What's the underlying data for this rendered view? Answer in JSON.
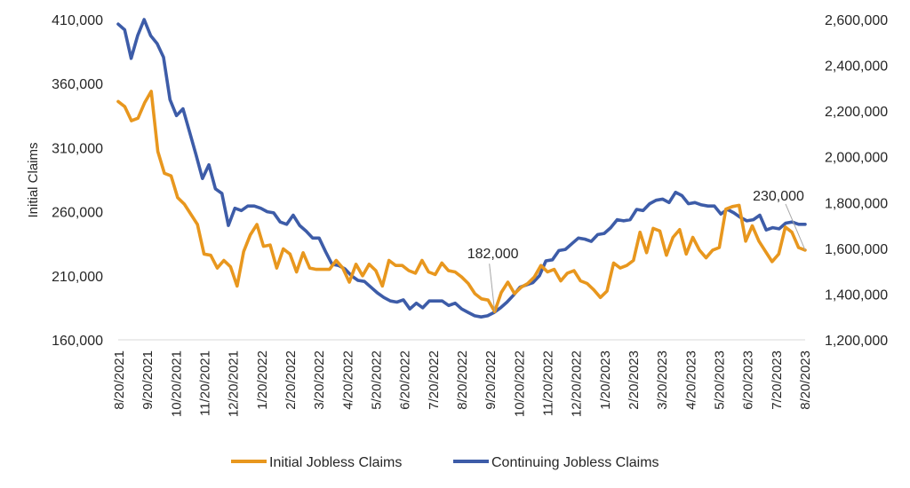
{
  "chart_data": {
    "type": "line",
    "title": "",
    "ylabel": "Initial Claims",
    "y2label": "",
    "xlabel": "",
    "ylim": [
      160000,
      410000
    ],
    "y2lim": [
      1200000,
      2600000
    ],
    "yticks": [
      "410,000",
      "360,000",
      "310,000",
      "260,000",
      "210,000",
      "160,000"
    ],
    "y2ticks": [
      "2,600,000",
      "2,400,000",
      "2,200,000",
      "2,000,000",
      "1,800,000",
      "1,600,000",
      "1,400,000",
      "1,200,000"
    ],
    "xticks": [
      "8/20/2021",
      "9/20/2021",
      "10/20/2021",
      "11/20/2021",
      "12/20/2021",
      "1/20/2022",
      "2/20/2022",
      "3/20/2022",
      "4/20/2022",
      "5/20/2022",
      "6/20/2022",
      "7/20/2022",
      "8/20/2022",
      "9/20/2022",
      "10/20/2022",
      "11/20/2022",
      "12/20/2022",
      "1/20/2023",
      "2/20/2023",
      "3/20/2023",
      "4/20/2023",
      "5/20/2023",
      "6/20/2023",
      "7/20/2023",
      "8/20/2023"
    ],
    "grid": false,
    "legend_position": "bottom",
    "series": [
      {
        "name": "Initial Jobless Claims",
        "axis": "left",
        "color": "#E8971E",
        "values": [
          346000,
          342000,
          331000,
          333000,
          345000,
          354000,
          307000,
          290000,
          288000,
          271000,
          266000,
          258000,
          250000,
          227000,
          226000,
          216000,
          222000,
          217000,
          202000,
          229000,
          242000,
          250000,
          233000,
          234000,
          216000,
          231000,
          227000,
          213000,
          228000,
          216000,
          215000,
          215000,
          215000,
          222000,
          216000,
          205000,
          219000,
          210000,
          219000,
          214000,
          202000,
          222000,
          218000,
          218000,
          214000,
          212000,
          222000,
          213000,
          211000,
          220000,
          214000,
          213000,
          209000,
          204000,
          196000,
          192000,
          191000,
          182000,
          197000,
          205000,
          196000,
          201000,
          204000,
          209000,
          218000,
          213000,
          215000,
          206000,
          212000,
          214000,
          206000,
          204000,
          199000,
          193000,
          198000,
          220000,
          216000,
          218000,
          222000,
          244000,
          228000,
          247000,
          245000,
          226000,
          240000,
          246000,
          227000,
          240000,
          230000,
          224000,
          230000,
          232000,
          262000,
          264000,
          265000,
          237000,
          249000,
          237000,
          229000,
          221000,
          227000,
          248000,
          244000,
          232000,
          230000
        ]
      },
      {
        "name": "Continuing Jobless Claims",
        "axis": "right",
        "color": "#3D5CA8",
        "values": [
          2580000,
          2555000,
          2430000,
          2530000,
          2600000,
          2530000,
          2495000,
          2435000,
          2250000,
          2180000,
          2210000,
          2110000,
          2010000,
          1905000,
          1965000,
          1860000,
          1840000,
          1700000,
          1775000,
          1765000,
          1785000,
          1785000,
          1775000,
          1760000,
          1755000,
          1715000,
          1705000,
          1745000,
          1700000,
          1675000,
          1645000,
          1645000,
          1585000,
          1530000,
          1525000,
          1510000,
          1480000,
          1460000,
          1455000,
          1430000,
          1405000,
          1385000,
          1370000,
          1365000,
          1375000,
          1335000,
          1360000,
          1340000,
          1370000,
          1370000,
          1370000,
          1350000,
          1360000,
          1335000,
          1320000,
          1305000,
          1300000,
          1305000,
          1320000,
          1340000,
          1365000,
          1395000,
          1430000,
          1440000,
          1450000,
          1480000,
          1545000,
          1550000,
          1590000,
          1595000,
          1620000,
          1645000,
          1640000,
          1630000,
          1660000,
          1665000,
          1690000,
          1725000,
          1720000,
          1725000,
          1770000,
          1765000,
          1795000,
          1810000,
          1815000,
          1800000,
          1845000,
          1830000,
          1795000,
          1800000,
          1790000,
          1785000,
          1785000,
          1750000,
          1770000,
          1755000,
          1735000,
          1720000,
          1725000,
          1745000,
          1680000,
          1690000,
          1685000,
          1710000,
          1715000,
          1705000,
          1705000
        ]
      }
    ],
    "annotations": [
      {
        "text": "182,000",
        "series": "Initial Jobless Claims",
        "index": 57
      },
      {
        "text": "230,000",
        "series": "Initial Jobless Claims",
        "index": 104
      }
    ]
  }
}
